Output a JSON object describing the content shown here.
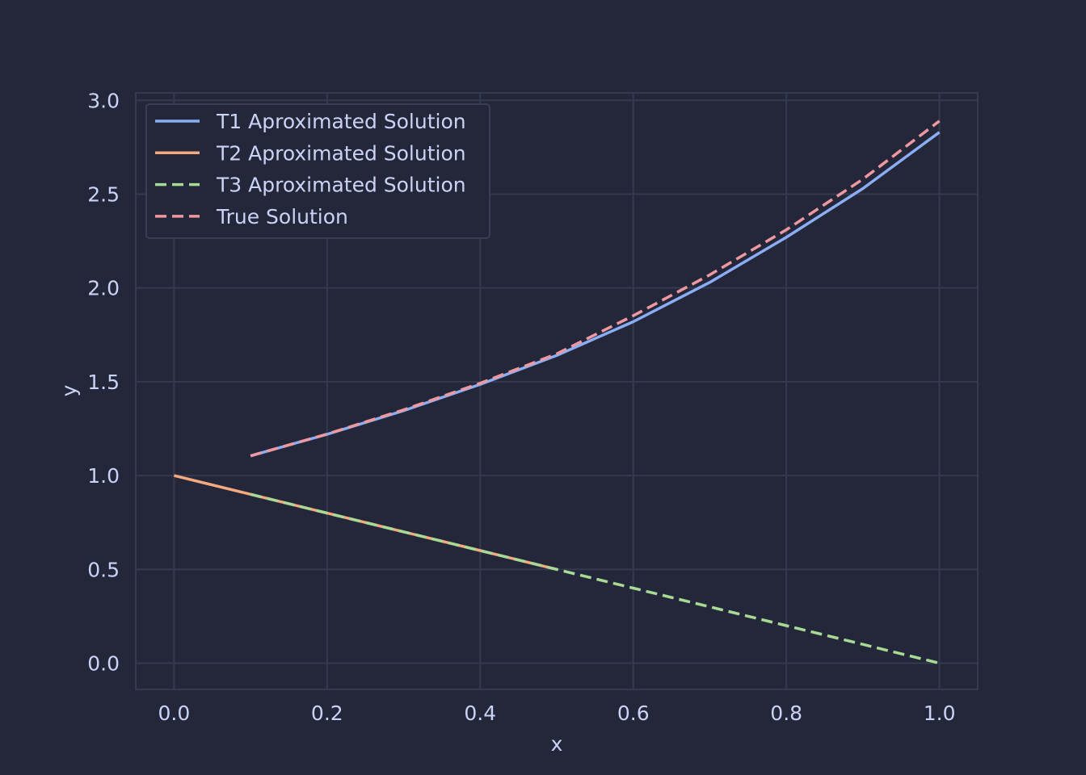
{
  "colors": {
    "background": "#24273a",
    "grid": "#363a4f",
    "text": "#cad3f5",
    "legend_frame": "#3a3e54"
  },
  "chart_data": {
    "type": "line",
    "title": "",
    "xlabel": "x",
    "ylabel": "y",
    "xlim": [
      -0.05,
      1.05
    ],
    "ylim": [
      -0.14,
      3.04
    ],
    "xticks": [
      0.0,
      0.2,
      0.4,
      0.6,
      0.8,
      1.0
    ],
    "xtick_labels": [
      "0.0",
      "0.2",
      "0.4",
      "0.6",
      "0.8",
      "1.0"
    ],
    "yticks": [
      0.0,
      0.5,
      1.0,
      1.5,
      2.0,
      2.5,
      3.0
    ],
    "ytick_labels": [
      "0.0",
      "0.5",
      "1.0",
      "1.5",
      "2.0",
      "2.5",
      "3.0"
    ],
    "grid": true,
    "legend_position": "upper-left",
    "series": [
      {
        "name": "T1 Aproximated Solution",
        "color": "#8aadf4",
        "dash": "solid",
        "x": [
          0.1,
          0.2,
          0.3,
          0.4,
          0.5,
          0.6,
          0.7,
          0.8,
          0.9,
          1.0
        ],
        "y": [
          1.105,
          1.22,
          1.346,
          1.486,
          1.64,
          1.82,
          2.03,
          2.27,
          2.53,
          2.83
        ]
      },
      {
        "name": "T2 Aproximated Solution",
        "color": "#f5a97f",
        "dash": "solid",
        "x": [
          0.0,
          0.1,
          0.2,
          0.3,
          0.4,
          0.5
        ],
        "y": [
          1.0,
          0.9,
          0.8,
          0.7,
          0.6,
          0.5
        ]
      },
      {
        "name": "T3 Aproximated Solution",
        "color": "#a6da95",
        "dash": "dashed",
        "x": [
          0.1,
          0.2,
          0.3,
          0.4,
          0.5,
          0.6,
          0.7,
          0.8,
          0.9,
          1.0
        ],
        "y": [
          0.9,
          0.8,
          0.7,
          0.6,
          0.5,
          0.4,
          0.3,
          0.2,
          0.1,
          0.0
        ]
      },
      {
        "name": "True Solution",
        "color": "#ee99a0",
        "dash": "dashed",
        "x": [
          0.1,
          0.2,
          0.3,
          0.4,
          0.5,
          0.6,
          0.7,
          0.8,
          0.9,
          1.0
        ],
        "y": [
          1.105,
          1.221,
          1.35,
          1.492,
          1.649,
          1.852,
          2.07,
          2.31,
          2.58,
          2.89
        ]
      }
    ]
  }
}
